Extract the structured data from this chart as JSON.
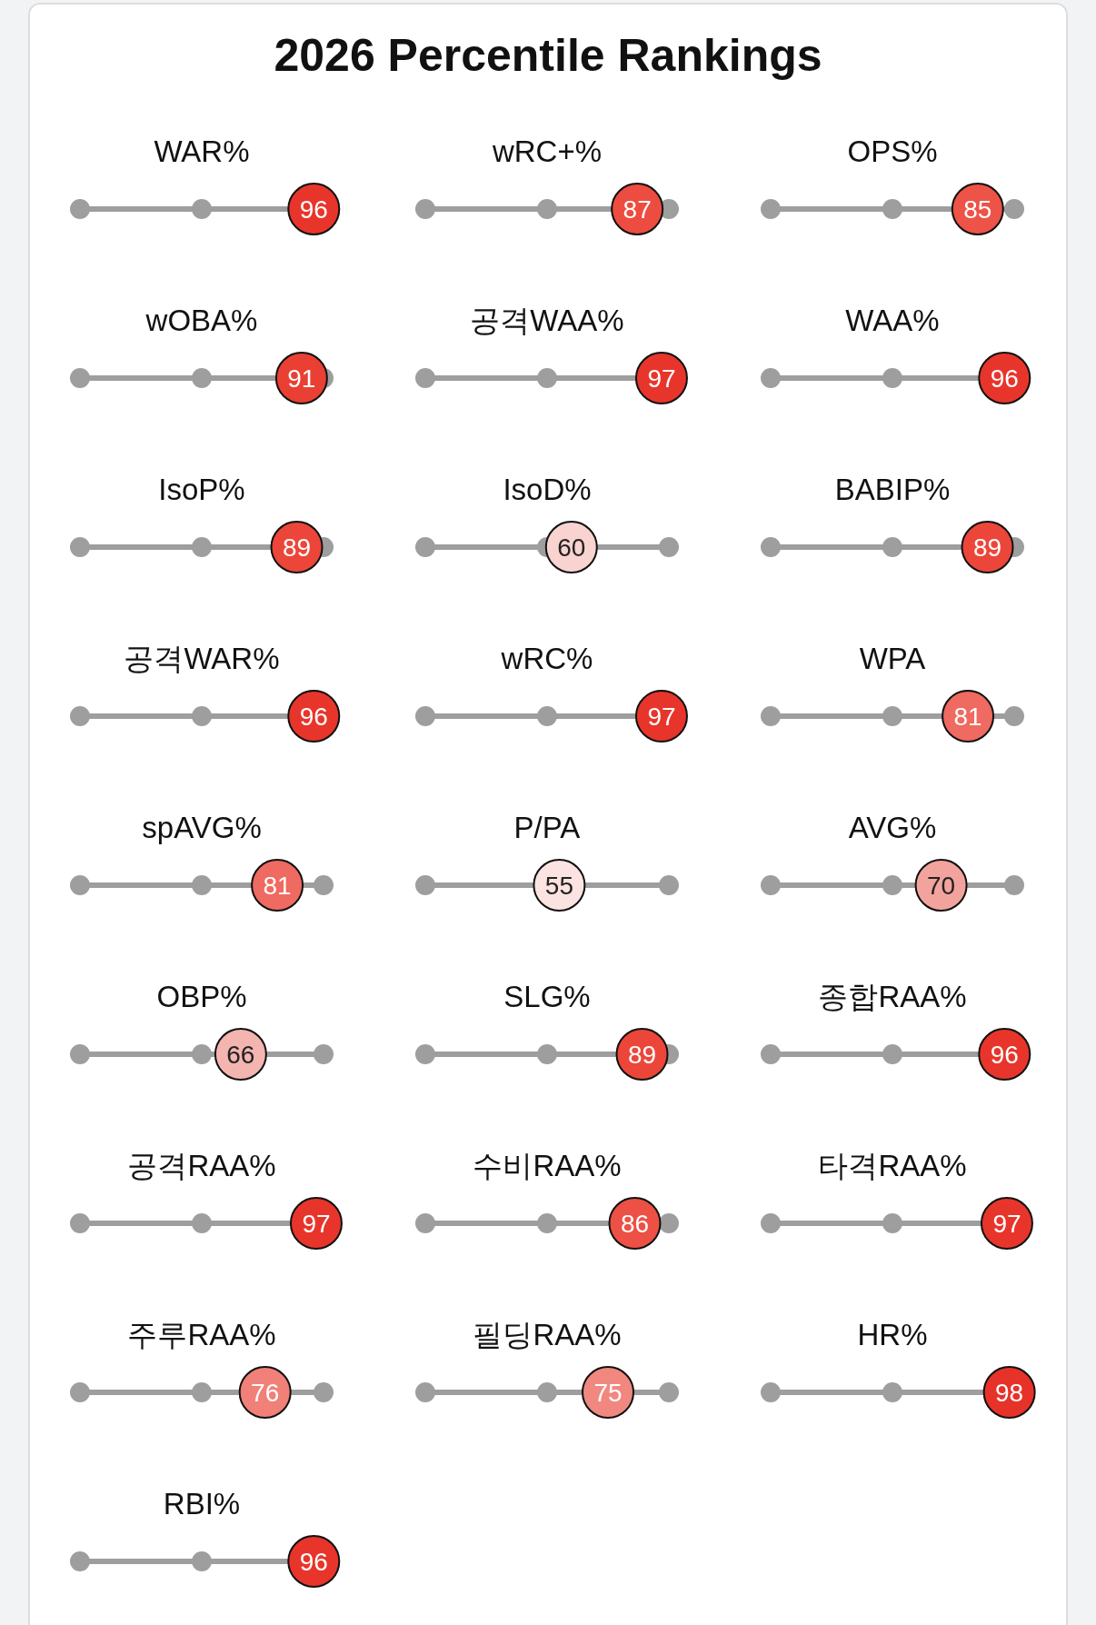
{
  "chart_data": [
    {
      "type": "other",
      "title": "2026 Percentile Rankings"
    },
    {
      "type": "other",
      "title": "WAR%",
      "categories": [
        null
      ],
      "values": [
        96
      ],
      "color": "#e8352b",
      "data_labels": true
    },
    {
      "type": "other",
      "title": "wRC+%",
      "categories": [
        null
      ],
      "values": [
        87
      ],
      "color": "#ed4c40",
      "data_labels": true
    },
    {
      "type": "other",
      "title": "OPS%",
      "categories": [
        null
      ],
      "values": [
        85
      ],
      "color": "#ee5347",
      "data_labels": true
    },
    {
      "type": "other",
      "title": "wOBA%",
      "categories": [
        null
      ],
      "values": [
        91
      ],
      "color": "#ea3f33",
      "data_labels": true
    },
    {
      "type": "other",
      "title": "공격WAA%",
      "categories": [
        null
      ],
      "values": [
        97
      ],
      "color": "#e8352b",
      "data_labels": true
    },
    {
      "type": "other",
      "title": "WAA%",
      "categories": [
        null
      ],
      "values": [
        96
      ],
      "color": "#e8352b",
      "data_labels": true
    },
    {
      "type": "other",
      "title": "IsoP%",
      "categories": [
        null
      ],
      "values": [
        89
      ],
      "color": "#ec463a",
      "data_labels": true
    },
    {
      "type": "other",
      "title": "IsoD%",
      "categories": [
        null
      ],
      "values": [
        60
      ],
      "color": "#f8d3d0",
      "data_labels": true
    },
    {
      "type": "other",
      "title": "BABIP%",
      "categories": [
        null
      ],
      "values": [
        89
      ],
      "color": "#ec463a",
      "data_labels": true
    },
    {
      "type": "other",
      "title": "공격WAR%",
      "categories": [
        null
      ],
      "values": [
        96
      ],
      "color": "#e8352b",
      "data_labels": true
    },
    {
      "type": "other",
      "title": "wRC%",
      "categories": [
        null
      ],
      "values": [
        97
      ],
      "color": "#e8352b",
      "data_labels": true
    },
    {
      "type": "other",
      "title": "WPA",
      "categories": [
        null
      ],
      "values": [
        81
      ],
      "color": "#ef6a60",
      "data_labels": true
    },
    {
      "type": "other",
      "title": "spAVG%",
      "categories": [
        null
      ],
      "values": [
        81
      ],
      "color": "#ef6a60",
      "data_labels": true
    },
    {
      "type": "other",
      "title": "P/PA",
      "categories": [
        null
      ],
      "values": [
        55
      ],
      "color": "#fbe3e1",
      "data_labels": true
    },
    {
      "type": "other",
      "title": "AVG%",
      "categories": [
        null
      ],
      "values": [
        70
      ],
      "color": "#f3a39d",
      "data_labels": true
    },
    {
      "type": "other",
      "title": "OBP%",
      "categories": [
        null
      ],
      "values": [
        66
      ],
      "color": "#f4b4af",
      "data_labels": true
    },
    {
      "type": "other",
      "title": "SLG%",
      "categories": [
        null
      ],
      "values": [
        89
      ],
      "color": "#ec463a",
      "data_labels": true
    },
    {
      "type": "other",
      "title": "종합RAA%",
      "categories": [
        null
      ],
      "values": [
        96
      ],
      "color": "#e8352b",
      "data_labels": true
    },
    {
      "type": "other",
      "title": "공격RAA%",
      "categories": [
        null
      ],
      "values": [
        97
      ],
      "color": "#e8352b",
      "data_labels": true
    },
    {
      "type": "other",
      "title": "수비RAA%",
      "categories": [
        null
      ],
      "values": [
        86
      ],
      "color": "#ed5044",
      "data_labels": true
    },
    {
      "type": "other",
      "title": "타격RAA%",
      "categories": [
        null
      ],
      "values": [
        97
      ],
      "color": "#e8352b",
      "data_labels": true
    },
    {
      "type": "other",
      "title": "주루RAA%",
      "categories": [
        null
      ],
      "values": [
        76
      ],
      "color": "#f08078",
      "data_labels": true
    },
    {
      "type": "other",
      "title": "필딩RAA%",
      "categories": [
        null
      ],
      "values": [
        75
      ],
      "color": "#f18880",
      "data_labels": true
    },
    {
      "type": "other",
      "title": "HR%",
      "categories": [
        null
      ],
      "values": [
        98
      ],
      "color": "#e7322a",
      "data_labels": true
    },
    {
      "type": "other",
      "title": "RBI%",
      "categories": [
        null
      ],
      "values": [
        96
      ],
      "color": "#e8352b",
      "data_labels": true
    }
  ]
}
